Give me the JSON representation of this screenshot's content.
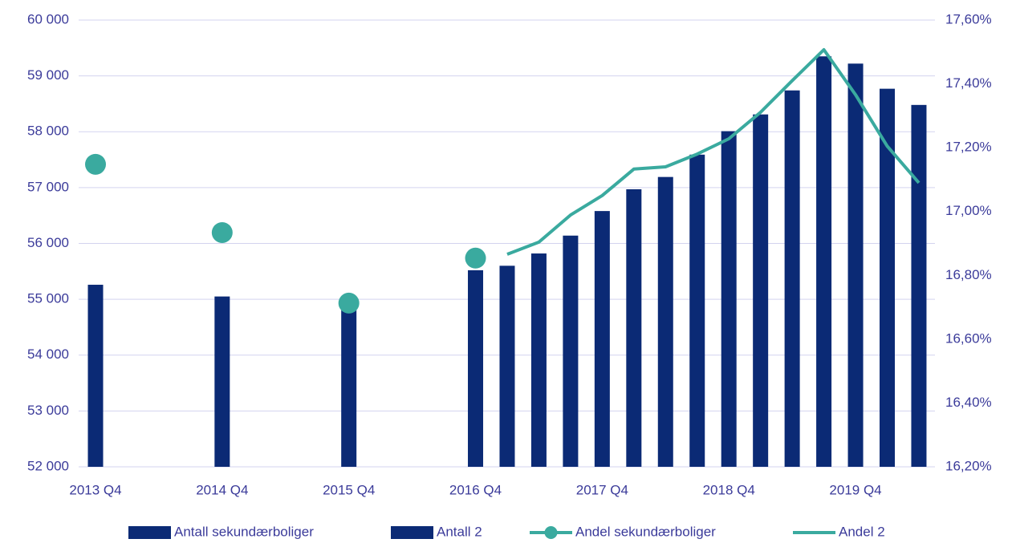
{
  "chart_data": {
    "type": "bar",
    "categories": [
      "2013 Q4",
      null,
      null,
      null,
      "2014 Q4",
      null,
      null,
      null,
      "2015 Q4",
      null,
      null,
      null,
      "2016 Q4",
      null,
      null,
      null,
      "2017 Q4",
      null,
      null,
      null,
      "2018 Q4",
      null,
      null,
      null,
      "2019 Q4",
      null,
      null
    ],
    "series": [
      {
        "name": "Antall sekundærboliger",
        "type": "bar",
        "color": "#0b2a75",
        "values": [
          55260,
          null,
          null,
          null,
          55050,
          null,
          null,
          null,
          54850,
          null,
          null,
          null,
          55520,
          null,
          null,
          null,
          null,
          null,
          null,
          null,
          null,
          null,
          null,
          null,
          null,
          null,
          null
        ]
      },
      {
        "name": "Antall 2",
        "type": "bar",
        "color": "#0b2a75",
        "values": [
          null,
          null,
          null,
          null,
          null,
          null,
          null,
          null,
          null,
          null,
          null,
          null,
          null,
          55600,
          55820,
          56140,
          56580,
          56970,
          57190,
          57590,
          58010,
          58310,
          58740,
          59350,
          59220,
          58770,
          58480
        ]
      },
      {
        "name": "Andel sekundærboliger",
        "type": "marker",
        "axis": "y2",
        "color": "#3aaa9f",
        "values": [
          17.148,
          null,
          null,
          null,
          16.934,
          null,
          null,
          null,
          16.713,
          null,
          null,
          null,
          16.854,
          null,
          null,
          null,
          null,
          null,
          null,
          null,
          null,
          null,
          null,
          null,
          null,
          null,
          null
        ]
      },
      {
        "name": "Andel 2",
        "type": "line",
        "axis": "y2",
        "color": "#3aaa9f",
        "values": [
          null,
          null,
          null,
          null,
          null,
          null,
          null,
          null,
          null,
          null,
          null,
          null,
          null,
          16.866,
          16.904,
          16.989,
          17.05,
          17.133,
          17.14,
          17.18,
          17.228,
          17.311,
          17.41,
          17.507,
          17.366,
          17.205,
          17.09
        ]
      }
    ],
    "ylim": [
      52000,
      60000
    ],
    "yticks": [
      {
        "value": 52000,
        "label": "52 000"
      },
      {
        "value": 53000,
        "label": "53 000"
      },
      {
        "value": 54000,
        "label": "54 000"
      },
      {
        "value": 55000,
        "label": "55 000"
      },
      {
        "value": 56000,
        "label": "56 000"
      },
      {
        "value": 57000,
        "label": "57 000"
      },
      {
        "value": 58000,
        "label": "58 000"
      },
      {
        "value": 59000,
        "label": "59 000"
      },
      {
        "value": 60000,
        "label": "60 000"
      }
    ],
    "y2lim": [
      16.2,
      17.6
    ],
    "y2ticks": [
      {
        "value": 16.2,
        "label": "16,20%"
      },
      {
        "value": 16.4,
        "label": "16,40%"
      },
      {
        "value": 16.6,
        "label": "16,60%"
      },
      {
        "value": 16.8,
        "label": "16,80%"
      },
      {
        "value": 17.0,
        "label": "17,00%"
      },
      {
        "value": 17.2,
        "label": "17,20%"
      },
      {
        "value": 17.4,
        "label": "17,40%"
      },
      {
        "value": 17.6,
        "label": "17,60%"
      }
    ],
    "grid": true,
    "legend": "bottom"
  }
}
